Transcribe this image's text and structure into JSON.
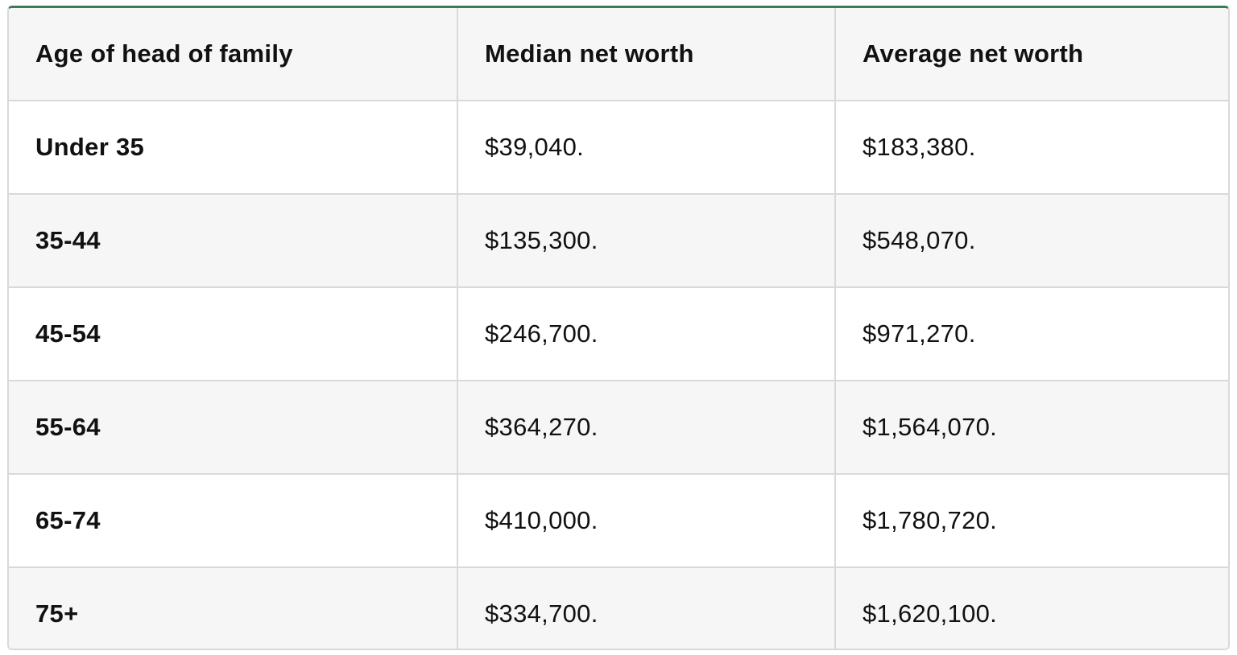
{
  "table": {
    "headers": [
      "Age of head of family",
      "Median net worth",
      "Average net worth"
    ],
    "rows": [
      {
        "age": "Under 35",
        "median": "$39,040.",
        "average": "$183,380."
      },
      {
        "age": "35-44",
        "median": "$135,300.",
        "average": "$548,070."
      },
      {
        "age": "45-54",
        "median": "$246,700.",
        "average": "$971,270."
      },
      {
        "age": "55-64",
        "median": "$364,270.",
        "average": "$1,564,070."
      },
      {
        "age": "65-74",
        "median": "$410,000.",
        "average": "$1,780,720."
      },
      {
        "age": "75+",
        "median": "$334,700.",
        "average": "$1,620,100."
      }
    ]
  },
  "colors": {
    "accent_top_border": "#3a7d55",
    "header_background": "#f6f6f6",
    "stripe_background": "#f6f6f6",
    "grid_lines": "#d9d9d9",
    "text": "#111111"
  }
}
